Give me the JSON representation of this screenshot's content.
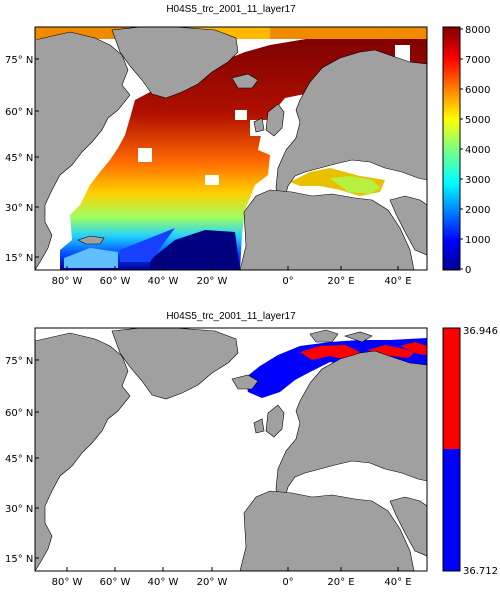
{
  "panels": [
    {
      "title": "H04S5_trc_2001_11_layer17",
      "colorbar": {
        "ticks": [
          "8000",
          "7000",
          "6000",
          "5000",
          "4000",
          "3000",
          "2000",
          "1000",
          "0"
        ],
        "colormap": "jet"
      },
      "y_labels": [
        "75° N",
        "60° N",
        "45° N",
        "30° N",
        "15° N"
      ],
      "x_labels": [
        "80° W",
        "60° W",
        "40° W",
        "20° W",
        "0°",
        "20° E",
        "40° E"
      ]
    },
    {
      "title": "H04S5_trc_2001_11_layer17",
      "colorbar": {
        "top_label": "36.946",
        "bottom_label": "36.712",
        "colors": [
          "#ff0000",
          "#0000ff"
        ]
      },
      "y_labels": [
        "75° N",
        "60° N",
        "45° N",
        "30° N",
        "15° N"
      ],
      "x_labels": [
        "80° W",
        "60° W",
        "40° W",
        "20° W",
        "0°",
        "20° E",
        "40° E"
      ]
    }
  ],
  "land_color": "#a0a0a0",
  "ocean_blank_color": "#ffffff"
}
